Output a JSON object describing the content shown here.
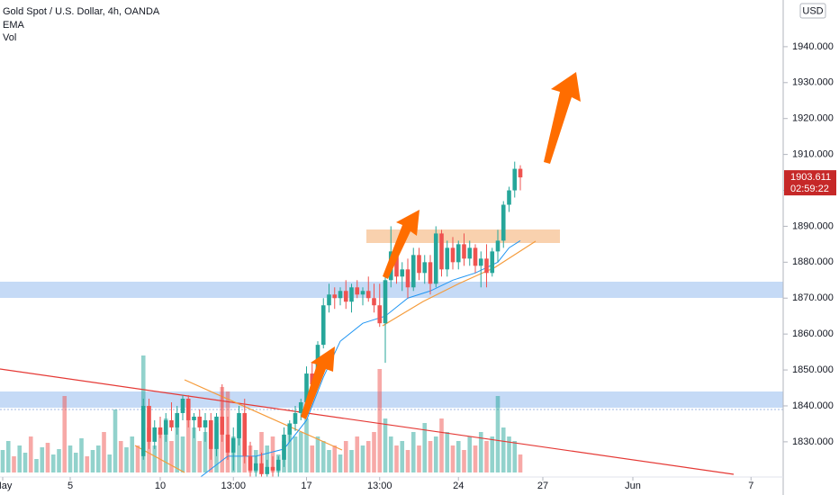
{
  "chart_data": {
    "type": "candlestick",
    "title": "Gold Spot / U.S. Dollar, 4h, OANDA",
    "indicators": [
      "EMA",
      "Vol"
    ],
    "currency": "USD",
    "countdown": "02:59:22",
    "up_color": "#26a69a",
    "down_color": "#ef5350",
    "ema_color": "#2196f3",
    "ylim": [
      1820.2,
      1953.0
    ],
    "yticks": [
      {
        "value": 1830,
        "label": "1830.000"
      },
      {
        "value": 1840,
        "label": "1840.000"
      },
      {
        "value": 1850,
        "label": "1850.000"
      },
      {
        "value": 1860,
        "label": "1860.000"
      },
      {
        "value": 1870,
        "label": "1870.000"
      },
      {
        "value": 1880,
        "label": "1880.000"
      },
      {
        "value": 1890,
        "label": "1890.000"
      },
      {
        "value": 1900,
        "label": "1900.000"
      },
      {
        "value": 1910,
        "label": "1910.000"
      },
      {
        "value": 1920,
        "label": "1920.000"
      },
      {
        "value": 1930,
        "label": "1930.000"
      },
      {
        "value": 1940,
        "label": "1940.000"
      }
    ],
    "xlim": [
      -0.48,
      138.72
    ],
    "xticks": [
      {
        "value": 0,
        "label": "May"
      },
      {
        "value": 12,
        "label": "5"
      },
      {
        "value": 28,
        "label": "10"
      },
      {
        "value": 41,
        "label": "13:00"
      },
      {
        "value": 54,
        "label": "17"
      },
      {
        "value": 67,
        "label": "13:00"
      },
      {
        "value": 81,
        "label": "24"
      },
      {
        "value": 96,
        "label": "27"
      },
      {
        "value": 112,
        "label": "Jun"
      },
      {
        "value": 133,
        "label": "7"
      }
    ],
    "ohlc": [
      null,
      null,
      null,
      null,
      null,
      null,
      null,
      null,
      null,
      null,
      null,
      null,
      null,
      null,
      null,
      null,
      null,
      null,
      null,
      null,
      null,
      null,
      null,
      null,
      null,
      [
        1826,
        1842,
        1825,
        1840
      ],
      [
        1840,
        1842,
        1828,
        1830
      ],
      [
        1830,
        1836,
        1828,
        1834
      ],
      [
        1834,
        1837,
        1831,
        1832
      ],
      [
        1832,
        1838,
        1830,
        1836
      ],
      [
        1836,
        1841,
        1833,
        1834
      ],
      [
        1834,
        1840,
        1832,
        1838
      ],
      [
        1838,
        1843,
        1836,
        1842
      ],
      [
        1842,
        1843,
        1834,
        1836
      ],
      [
        1836,
        1838,
        1831,
        1837
      ],
      [
        1837,
        1839,
        1833,
        1834
      ],
      [
        1834,
        1838,
        1830,
        1836
      ],
      [
        1836,
        1838,
        1825,
        1828
      ],
      [
        1828,
        1838,
        1826,
        1837
      ],
      [
        1837,
        1846,
        1830,
        1832
      ],
      [
        1832,
        1837,
        1825,
        1827
      ],
      [
        1827,
        1834,
        1822,
        1831
      ],
      [
        1831,
        1840,
        1829,
        1838
      ],
      [
        1838,
        1842,
        1824,
        1826
      ],
      [
        1826,
        1830,
        1820,
        1822
      ],
      [
        1822,
        1826,
        1818,
        1824
      ],
      [
        1824,
        1827,
        1818,
        1821
      ],
      [
        1821,
        1825,
        1817,
        1823
      ],
      [
        1823,
        1826,
        1819,
        1822
      ],
      [
        1822,
        1826,
        1819,
        1825
      ],
      [
        1825,
        1834,
        1823,
        1832
      ],
      [
        1832,
        1836,
        1830,
        1835
      ],
      [
        1835,
        1840,
        1833,
        1838
      ],
      [
        1838,
        1842,
        1836,
        1841
      ],
      [
        1841,
        1851,
        1840,
        1849
      ],
      [
        1849,
        1852,
        1844,
        1846
      ],
      [
        1846,
        1858,
        1845,
        1857
      ],
      [
        1857,
        1870,
        1856,
        1868
      ],
      [
        1868,
        1874,
        1866,
        1871
      ],
      [
        1871,
        1873,
        1867,
        1870
      ],
      [
        1870,
        1873,
        1868,
        1872
      ],
      [
        1872,
        1875,
        1867,
        1869
      ],
      [
        1869,
        1874,
        1866,
        1873
      ],
      [
        1873,
        1875,
        1870,
        1871
      ],
      [
        1871,
        1873,
        1868,
        1872
      ],
      [
        1872,
        1876,
        1869,
        1870
      ],
      [
        1870,
        1874,
        1866,
        1868
      ],
      [
        1868,
        1874,
        1862,
        1863
      ],
      [
        1863,
        1877,
        1852,
        1875
      ],
      [
        1875,
        1890,
        1873,
        1883
      ],
      [
        1883,
        1885,
        1874,
        1876
      ],
      [
        1876,
        1880,
        1872,
        1878
      ],
      [
        1878,
        1881,
        1870,
        1873
      ],
      [
        1873,
        1884,
        1872,
        1882
      ],
      [
        1882,
        1884,
        1875,
        1877
      ],
      [
        1877,
        1882,
        1874,
        1880
      ],
      [
        1880,
        1882,
        1871,
        1874
      ],
      [
        1874,
        1890,
        1873,
        1888
      ],
      [
        1888,
        1889,
        1876,
        1878
      ],
      [
        1878,
        1886,
        1876,
        1884
      ],
      [
        1884,
        1887,
        1878,
        1880
      ],
      [
        1880,
        1886,
        1878,
        1885
      ],
      [
        1885,
        1888,
        1879,
        1881
      ],
      [
        1881,
        1886,
        1879,
        1884
      ],
      [
        1884,
        1885,
        1877,
        1879
      ],
      [
        1879,
        1883,
        1873,
        1881
      ],
      [
        1881,
        1885,
        1873,
        1877
      ],
      [
        1877,
        1884,
        1876,
        1883
      ],
      [
        1883,
        1889,
        1880,
        1886
      ],
      [
        1886,
        1897,
        1884,
        1896
      ],
      [
        1896,
        1901,
        1894,
        1900
      ],
      [
        1900,
        1908,
        1898,
        1906
      ],
      [
        1906,
        1907,
        1900,
        1903.611
      ]
    ],
    "volume_lim": [
      0,
      150
    ],
    "volume": [
      25,
      35,
      18,
      30,
      22,
      40,
      15,
      28,
      33,
      20,
      26,
      85,
      30,
      22,
      38,
      18,
      25,
      30,
      45,
      20,
      70,
      35,
      28,
      40,
      30,
      130,
      50,
      30,
      45,
      60,
      35,
      55,
      40,
      80,
      50,
      35,
      45,
      30,
      55,
      95,
      90,
      40,
      60,
      35,
      30,
      25,
      45,
      30,
      40,
      20,
      35,
      55,
      40,
      45,
      60,
      30,
      40,
      35,
      25,
      30,
      20,
      35,
      25,
      40,
      30,
      35,
      45,
      115,
      60,
      40,
      30,
      35,
      25,
      45,
      30,
      55,
      35,
      40,
      60,
      45,
      30,
      35,
      25,
      40,
      30,
      45,
      35,
      40,
      85,
      50,
      40,
      35,
      20
    ],
    "volume_up": [
      1,
      1,
      0,
      1,
      1,
      0,
      1,
      1,
      0,
      1,
      1,
      0,
      1,
      1,
      1,
      0,
      1,
      1,
      0,
      1,
      1,
      0,
      1,
      1,
      0,
      1,
      0,
      1,
      0,
      1,
      0,
      1,
      1,
      0,
      1,
      0,
      1,
      0,
      1,
      0,
      0,
      1,
      1,
      0,
      0,
      1,
      0,
      1,
      0,
      1,
      1,
      1,
      1,
      1,
      1,
      0,
      1,
      1,
      1,
      0,
      1,
      0,
      1,
      0,
      1,
      0,
      0,
      0,
      1,
      1,
      0,
      1,
      0,
      1,
      0,
      1,
      0,
      1,
      0,
      1,
      0,
      1,
      0,
      1,
      0,
      1,
      0,
      1,
      1,
      1,
      1,
      1,
      0
    ],
    "ema_x": [
      35,
      40,
      45,
      50,
      54,
      57,
      60,
      64,
      68,
      72,
      76,
      80,
      84,
      88,
      90,
      92
    ],
    "ema": [
      1820,
      1826,
      1826,
      1828,
      1836,
      1848,
      1858,
      1863,
      1865,
      1870,
      1872,
      1875,
      1877,
      1880,
      1884,
      1886
    ]
  }
}
